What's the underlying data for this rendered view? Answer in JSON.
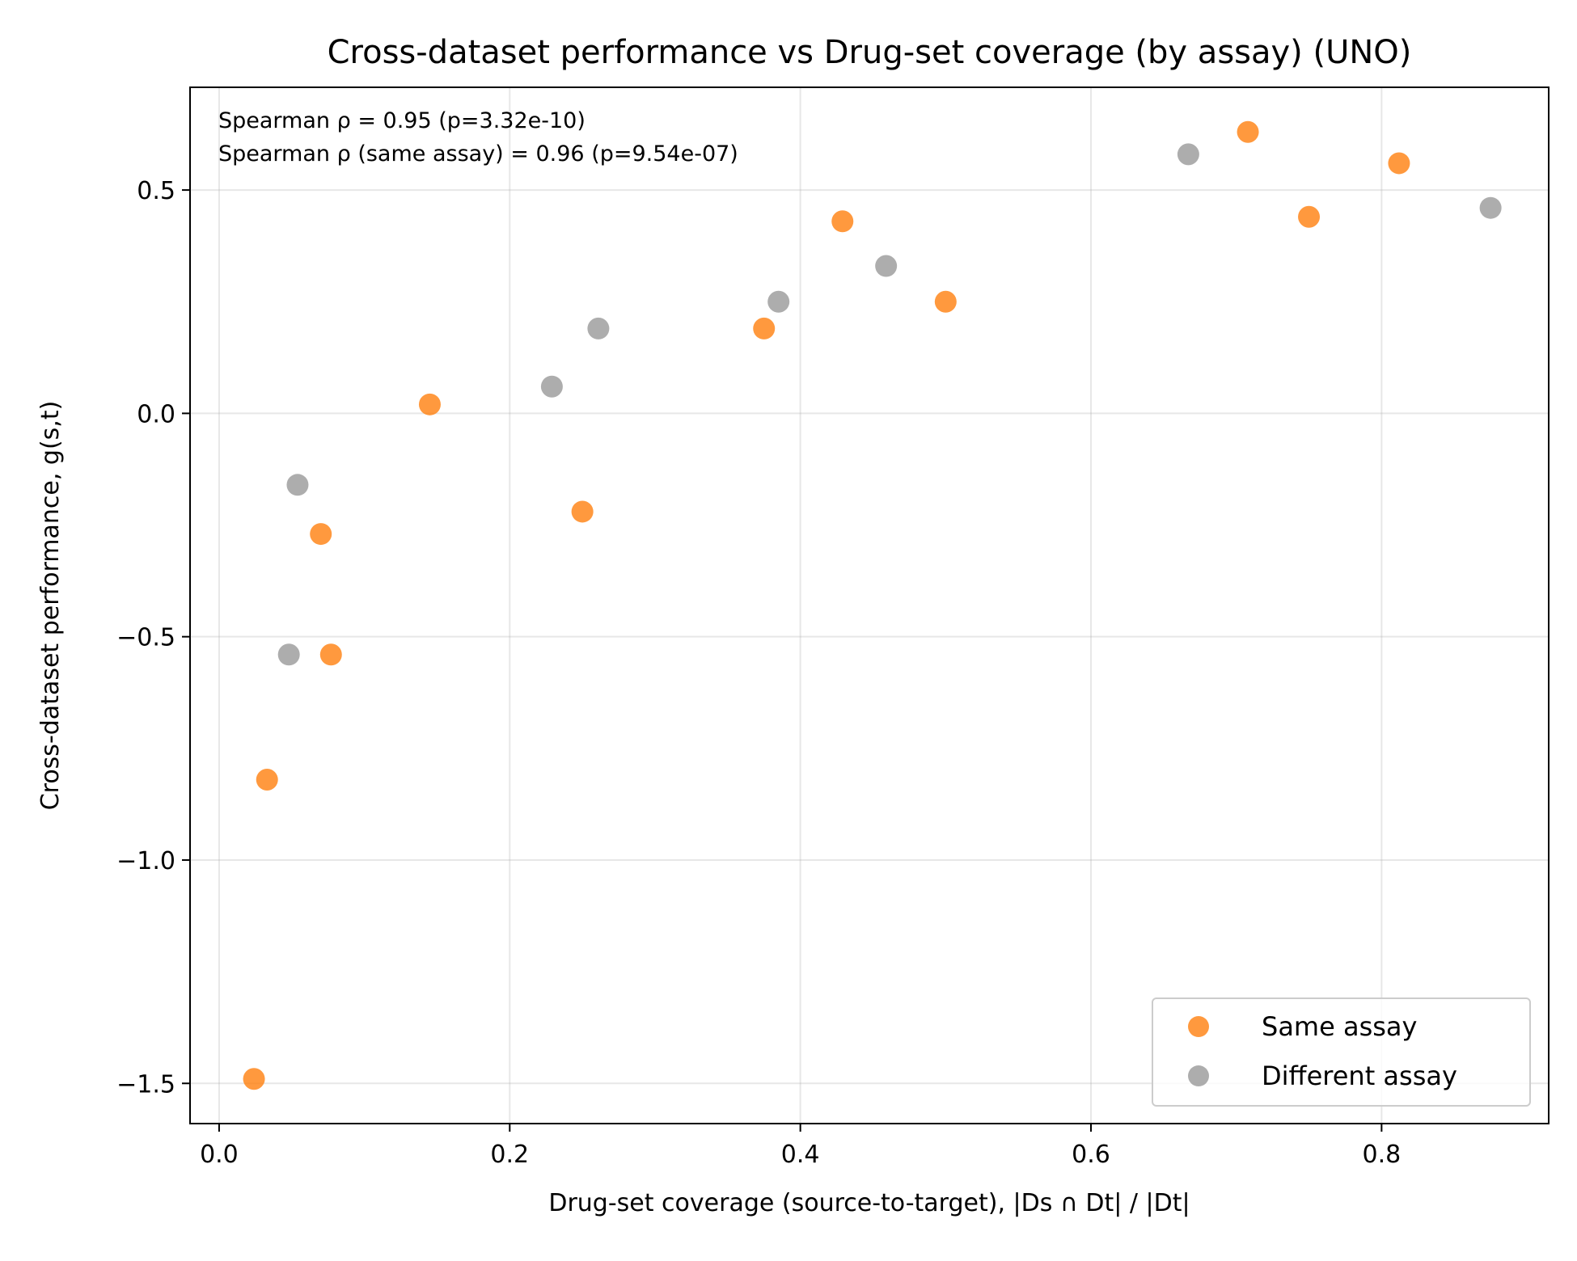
{
  "chart_data": {
    "type": "scatter",
    "title": "Cross-dataset performance vs Drug-set coverage (by assay) (UNO)",
    "xlabel": "Drug-set coverage (source-to-target), |Ds ∩ Dt| / |Dt|",
    "ylabel": "Cross-dataset performance, g(s,t)",
    "xlim": [
      -0.02,
      0.915
    ],
    "ylim": [
      -1.59,
      0.73
    ],
    "xticks": [
      0.0,
      0.2,
      0.4,
      0.6,
      0.8
    ],
    "xtick_labels": [
      "0.0",
      "0.2",
      "0.4",
      "0.6",
      "0.8"
    ],
    "yticks": [
      0.5,
      0.0,
      -0.5,
      -1.0,
      -1.5
    ],
    "ytick_labels": [
      "0.5",
      "0.0",
      "−0.5",
      "−1.0",
      "−1.5"
    ],
    "grid": true,
    "legend_position": "lower-right",
    "annotations": [
      "Spearman ρ = 0.95 (p=3.32e-10)",
      "Spearman ρ (same assay) = 0.96 (p=9.54e-07)"
    ],
    "series": [
      {
        "name": "Same assay",
        "color": "#ff7f0e",
        "points": [
          {
            "x": 0.024,
            "y": -1.49
          },
          {
            "x": 0.033,
            "y": -0.82
          },
          {
            "x": 0.07,
            "y": -0.27
          },
          {
            "x": 0.077,
            "y": -0.54
          },
          {
            "x": 0.145,
            "y": 0.02
          },
          {
            "x": 0.25,
            "y": -0.22
          },
          {
            "x": 0.375,
            "y": 0.19
          },
          {
            "x": 0.429,
            "y": 0.43
          },
          {
            "x": 0.5,
            "y": 0.25
          },
          {
            "x": 0.708,
            "y": 0.63
          },
          {
            "x": 0.75,
            "y": 0.44
          },
          {
            "x": 0.812,
            "y": 0.56
          }
        ]
      },
      {
        "name": "Different assay",
        "color": "#999999",
        "points": [
          {
            "x": 0.048,
            "y": -0.54
          },
          {
            "x": 0.054,
            "y": -0.16
          },
          {
            "x": 0.229,
            "y": 0.06
          },
          {
            "x": 0.261,
            "y": 0.19
          },
          {
            "x": 0.385,
            "y": 0.25
          },
          {
            "x": 0.459,
            "y": 0.33
          },
          {
            "x": 0.667,
            "y": 0.58
          },
          {
            "x": 0.875,
            "y": 0.46
          }
        ]
      }
    ]
  }
}
